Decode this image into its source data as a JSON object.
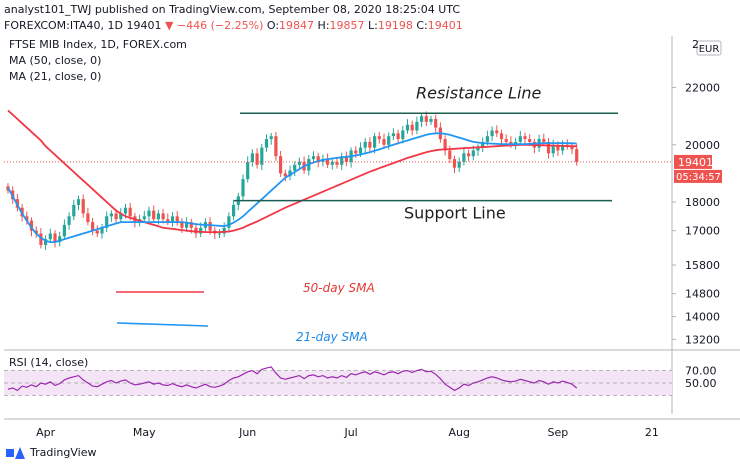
{
  "header": {
    "line1": "analyst101_TWJ published on TradingView.com, September 08, 2020 18:25:04 UTC",
    "symbol": "FOREXCOM:ITA40, 1D",
    "last": "19401",
    "change": "−446 (−2.25%)",
    "o_label": "O:",
    "o": "19847",
    "h_label": "H:",
    "h": "19857",
    "l_label": "L:",
    "l": "19198",
    "c_label": "C:",
    "c": "19401"
  },
  "brand": {
    "name": "TradingView"
  },
  "colors": {
    "up": "#26a69a",
    "down": "#ef5350",
    "ma50": "#f23645",
    "ma21": "#2196f3",
    "rsi": "#9c27b0",
    "rsi_band": "#f3e5f5",
    "channel": "#1b5e4f"
  },
  "chart_data": {
    "type": "candlestick",
    "legend": [
      "FTSE MIB Index, 1D, FOREX.com",
      "MA (50, close, 0)",
      "MA (21, close, 0)"
    ],
    "currency_badge": "EUR",
    "y_ticks": [
      "22000",
      "20000",
      "18000",
      "17000",
      "15800",
      "14800",
      "14000",
      "13200"
    ],
    "y_top_partial": "2",
    "ylim": [
      12900,
      23800
    ],
    "x_ticks": [
      {
        "label": "Apr",
        "i": 8
      },
      {
        "label": "May",
        "i": 29
      },
      {
        "label": "Jun",
        "i": 51
      },
      {
        "label": "Jul",
        "i": 73
      },
      {
        "label": "Aug",
        "i": 96
      },
      {
        "label": "Sep",
        "i": 117
      },
      {
        "label": "21",
        "i": 137
      }
    ],
    "price_label": "19401",
    "countdown_label": "05:34:57",
    "annotations": {
      "resistance": "Resistance Line",
      "support": "Support Line",
      "sma50": "50-day SMA",
      "sma21": "21-day SMA"
    },
    "resistance_level": 21100,
    "support_level": 18050,
    "candles_close": [
      18400,
      18100,
      17800,
      17500,
      17350,
      17000,
      16900,
      16500,
      16700,
      16900,
      16600,
      16800,
      17200,
      17500,
      17900,
      18100,
      17600,
      17300,
      17000,
      16900,
      17100,
      17500,
      17600,
      17400,
      17600,
      17800,
      17500,
      17300,
      17400,
      17500,
      17700,
      17400,
      17600,
      17400,
      17300,
      17500,
      17300,
      17100,
      17300,
      17100,
      16900,
      17100,
      17300,
      17000,
      16900,
      16900,
      17100,
      17500,
      17900,
      18200,
      18800,
      19400,
      19700,
      19300,
      19900,
      20200,
      20300,
      19600,
      19000,
      18900,
      19100,
      19300,
      19400,
      19100,
      19500,
      19600,
      19400,
      19500,
      19300,
      19400,
      19300,
      19600,
      19400,
      19800,
      19700,
      19900,
      20100,
      19900,
      20300,
      20200,
      20000,
      20300,
      20400,
      20200,
      20500,
      20700,
      20500,
      20800,
      21000,
      20800,
      20900,
      20600,
      20200,
      19800,
      19500,
      19200,
      19400,
      19700,
      19600,
      19800,
      19900,
      20100,
      20300,
      20500,
      20400,
      20200,
      20100,
      20000,
      20100,
      20300,
      20200,
      20100,
      19900,
      20200,
      20100,
      19700,
      20000,
      19800,
      20000,
      19950,
      19847,
      19401
    ],
    "ma50": [
      21200,
      21050,
      20900,
      20750,
      20600,
      20450,
      20300,
      20150,
      19950,
      19800,
      19650,
      19500,
      19350,
      19200,
      19050,
      18900,
      18750,
      18600,
      18450,
      18300,
      18150,
      18000,
      17850,
      17700,
      17600,
      17500,
      17450,
      17400,
      17350,
      17300,
      17250,
      17200,
      17150,
      17100,
      17080,
      17060,
      17040,
      17020,
      17000,
      16980,
      16970,
      16960,
      16950,
      16950,
      16950,
      16950,
      16960,
      16970,
      17000,
      17050,
      17100,
      17180,
      17250,
      17320,
      17400,
      17480,
      17560,
      17640,
      17720,
      17800,
      17870,
      17940,
      18010,
      18080,
      18150,
      18220,
      18290,
      18360,
      18430,
      18500,
      18570,
      18640,
      18710,
      18780,
      18850,
      18920,
      18990,
      19060,
      19120,
      19180,
      19240,
      19300,
      19360,
      19420,
      19480,
      19540,
      19590,
      19640,
      19690,
      19740,
      19780,
      19810,
      19830,
      19840,
      19850,
      19860,
      19870,
      19880,
      19890,
      19900,
      19910,
      19920,
      19930,
      19940,
      19950,
      19960,
      19970,
      19980,
      19990,
      20000,
      20000,
      19995,
      19990,
      19985,
      19980,
      19975,
      19970,
      19965,
      19960,
      19955,
      19950,
      19945
    ],
    "ma21": [
      18500,
      18200,
      17900,
      17600,
      17350,
      17100,
      16900,
      16750,
      16650,
      16600,
      16600,
      16650,
      16700,
      16750,
      16800,
      16850,
      16900,
      16950,
      17000,
      17050,
      17100,
      17150,
      17200,
      17250,
      17300,
      17300,
      17300,
      17300,
      17300,
      17300,
      17300,
      17300,
      17300,
      17300,
      17300,
      17300,
      17300,
      17300,
      17280,
      17250,
      17230,
      17210,
      17200,
      17190,
      17180,
      17170,
      17160,
      17200,
      17280,
      17380,
      17500,
      17650,
      17800,
      17950,
      18100,
      18250,
      18400,
      18550,
      18700,
      18850,
      18950,
      19050,
      19150,
      19250,
      19320,
      19380,
      19430,
      19470,
      19500,
      19520,
      19540,
      19560,
      19580,
      19600,
      19630,
      19660,
      19700,
      19740,
      19790,
      19840,
      19890,
      19950,
      20000,
      20050,
      20100,
      20150,
      20200,
      20250,
      20300,
      20350,
      20380,
      20400,
      20400,
      20380,
      20350,
      20300,
      20250,
      20200,
      20150,
      20100,
      20080,
      20060,
      20050,
      20040,
      20030,
      20020,
      20020,
      20020,
      20020,
      20020,
      20020,
      20030,
      20040,
      20050,
      20060,
      20060,
      20060,
      20060,
      20060,
      20055,
      20050,
      20045
    ],
    "rsi_label": "RSI (14, close)",
    "rsi_ticks": [
      "50.00",
      "70.00"
    ],
    "rsi": [
      40,
      42,
      38,
      45,
      43,
      47,
      44,
      50,
      48,
      52,
      46,
      49,
      55,
      58,
      60,
      62,
      55,
      50,
      45,
      44,
      48,
      52,
      54,
      50,
      53,
      55,
      50,
      47,
      48,
      50,
      52,
      48,
      50,
      47,
      46,
      49,
      46,
      44,
      47,
      44,
      42,
      45,
      48,
      44,
      43,
      45,
      48,
      54,
      58,
      60,
      64,
      68,
      70,
      65,
      72,
      74,
      76,
      66,
      58,
      56,
      58,
      60,
      62,
      57,
      62,
      63,
      60,
      62,
      58,
      60,
      58,
      62,
      59,
      65,
      63,
      66,
      68,
      64,
      68,
      66,
      63,
      67,
      68,
      65,
      69,
      70,
      67,
      70,
      72,
      68,
      69,
      64,
      57,
      48,
      43,
      38,
      42,
      48,
      46,
      50,
      52,
      55,
      58,
      60,
      58,
      55,
      53,
      52,
      53,
      56,
      54,
      52,
      50,
      54,
      52,
      48,
      52,
      50,
      53,
      51,
      48,
      42
    ]
  }
}
